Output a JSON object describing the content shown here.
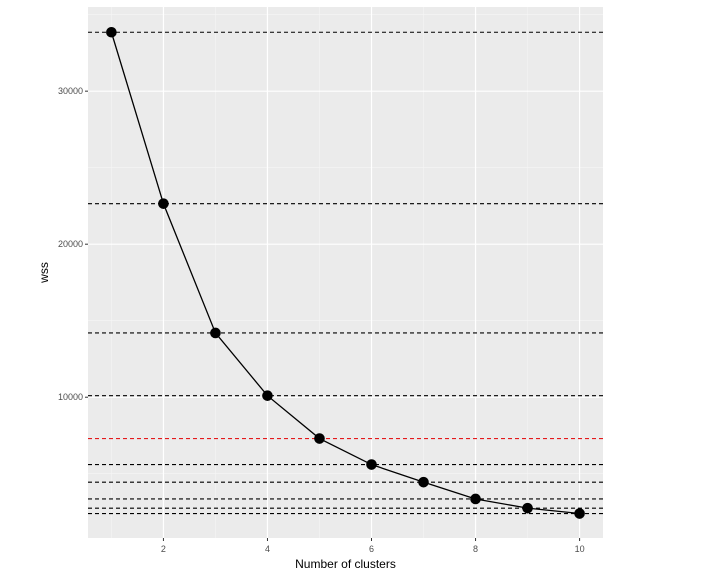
{
  "chart_data": {
    "type": "line",
    "title": "",
    "xlabel": "Number of clusters",
    "ylabel": "wss",
    "x": [
      1,
      2,
      3,
      4,
      5,
      6,
      7,
      8,
      9,
      10
    ],
    "series": [
      {
        "values": [
          33850,
          22650,
          14200,
          10100,
          7300,
          5600,
          4450,
          3350,
          2750,
          2400
        ]
      }
    ],
    "reference_lines": [
      {
        "y": 33850,
        "style": "dashed",
        "color": "#000000"
      },
      {
        "y": 22650,
        "style": "dashed",
        "color": "#000000"
      },
      {
        "y": 14200,
        "style": "dashed",
        "color": "#000000"
      },
      {
        "y": 10100,
        "style": "dashed",
        "color": "#000000"
      },
      {
        "y": 7300,
        "style": "dashed",
        "color": "#e41a1c"
      },
      {
        "y": 5600,
        "style": "dashed",
        "color": "#000000"
      },
      {
        "y": 4450,
        "style": "dashed",
        "color": "#000000"
      },
      {
        "y": 3350,
        "style": "dashed",
        "color": "#000000"
      },
      {
        "y": 2750,
        "style": "dashed",
        "color": "#000000"
      },
      {
        "y": 2400,
        "style": "dashed",
        "color": "#000000"
      }
    ],
    "xlim": [
      0.55,
      10.45
    ],
    "ylim": [
      800,
      35500
    ],
    "x_ticks": [
      2,
      4,
      6,
      8,
      10
    ],
    "x_tick_labels": [
      "2",
      "4",
      "6",
      "8",
      "10"
    ],
    "y_ticks": [
      10000,
      20000,
      30000
    ],
    "y_tick_labels": [
      "10000",
      "20000",
      "30000"
    ],
    "grid": true,
    "legend": "none",
    "colors": {
      "panel": "#ebebeb",
      "grid_major": "#ffffff",
      "line": "#000000",
      "point": "#000000",
      "highlight": "#e41a1c"
    }
  }
}
